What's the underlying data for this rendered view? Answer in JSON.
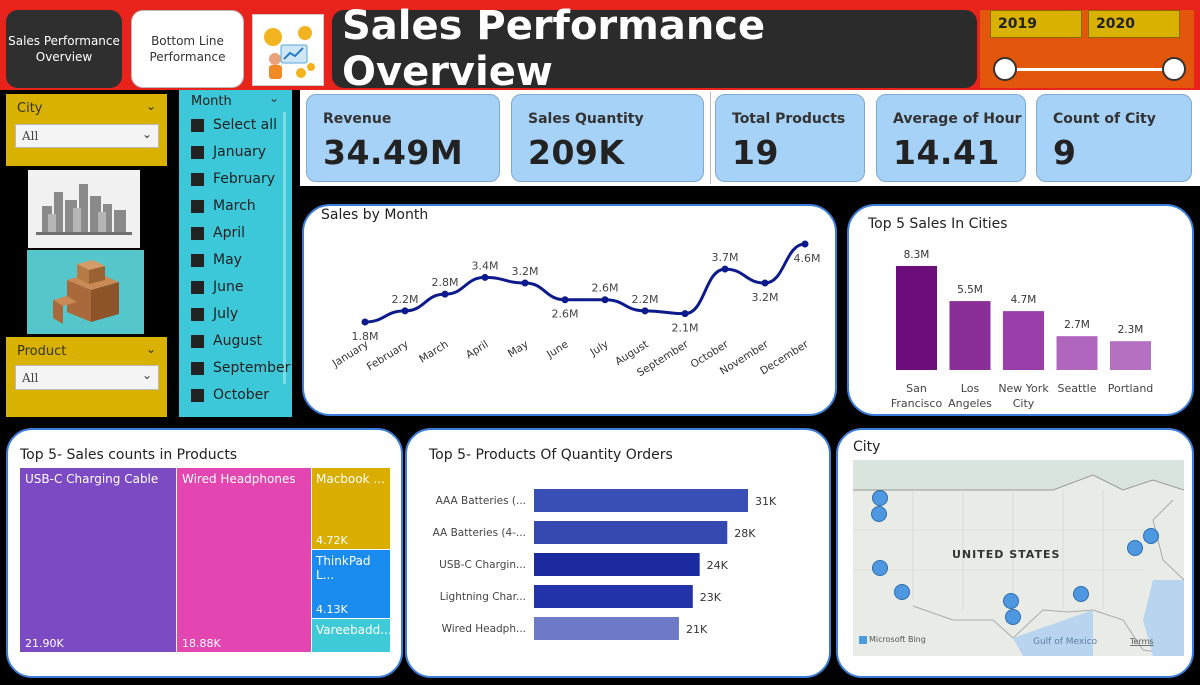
{
  "nav": {
    "sales_performance": "Sales Performance Overview",
    "bottom_line": "Bottom Line Performance"
  },
  "header": {
    "title": "Sales Performance Overview"
  },
  "years": {
    "start": "2019",
    "end": "2020"
  },
  "filters": {
    "city": {
      "label": "City",
      "value": "All"
    },
    "product": {
      "label": "Product",
      "value": "All"
    },
    "month": {
      "label": "Month",
      "items": [
        "Select all",
        "January",
        "February",
        "March",
        "April",
        "May",
        "June",
        "July",
        "August",
        "September",
        "October"
      ]
    }
  },
  "kpis": [
    {
      "label": "Revenue",
      "value": "34.49M"
    },
    {
      "label": "Sales Quantity",
      "value": "209K"
    },
    {
      "label": "Total Products",
      "value": "19"
    },
    {
      "label": "Average of Hour",
      "value": "14.41"
    },
    {
      "label": "Count of City",
      "value": "9"
    }
  ],
  "chart_data": [
    {
      "type": "line",
      "title": "Sales by Month",
      "categories": [
        "January",
        "February",
        "March",
        "April",
        "May",
        "June",
        "July",
        "August",
        "September",
        "October",
        "November",
        "December"
      ],
      "values": [
        1.8,
        2.2,
        2.8,
        3.4,
        3.2,
        2.6,
        2.6,
        2.2,
        2.1,
        3.7,
        3.2,
        4.6
      ],
      "labels": [
        "1.8M",
        "2.2M",
        "2.8M",
        "3.4M",
        "3.2M",
        "2.6M",
        "2.6M",
        "2.2M",
        "2.1M",
        "3.7M",
        "3.2M",
        "4.6M"
      ],
      "color": "#0d1a8c"
    },
    {
      "type": "bar",
      "title": "Top 5 Sales In Cities",
      "categories": [
        "San Francisco",
        "Los Angeles",
        "New York City",
        "Seattle",
        "Portland"
      ],
      "values": [
        8.3,
        5.5,
        4.7,
        2.7,
        2.3
      ],
      "labels": [
        "8.3M",
        "5.5M",
        "4.7M",
        "2.7M",
        "2.3M"
      ],
      "colors": [
        "#6b0e7c",
        "#8a2f98",
        "#9a3faa",
        "#b066bd",
        "#b470c1"
      ]
    },
    {
      "type": "treemap",
      "title": "Top 5- Sales counts in Products",
      "items": [
        {
          "name": "USB-C Charging Cable",
          "value": 21.9,
          "label": "21.90K",
          "color": "#7c4ac2"
        },
        {
          "name": "Wired Headphones",
          "value": 18.88,
          "label": "18.88K",
          "color": "#e345b1"
        },
        {
          "name": "Macbook ...",
          "value": 4.72,
          "label": "4.72K",
          "color": "#d9ae00"
        },
        {
          "name": "ThinkPad L...",
          "value": 4.13,
          "label": "4.13K",
          "color": "#1a8cf0"
        },
        {
          "name": "Vareebadd...",
          "value": 0,
          "label": "",
          "color": "#3fcad8"
        }
      ]
    },
    {
      "type": "bar",
      "orientation": "horizontal",
      "title": "Top 5- Products Of Quantity Orders",
      "categories": [
        "AAA Batteries (...",
        "AA Batteries (4-...",
        "USB-C Chargin...",
        "Lightning Char...",
        "Wired Headph..."
      ],
      "values": [
        31,
        28,
        24,
        23,
        21
      ],
      "labels": [
        "31K",
        "28K",
        "24K",
        "23K",
        "21K"
      ],
      "colors": [
        "#3a4fb5",
        "#3448b0",
        "#1c2aa0",
        "#2232a8",
        "#6d7ac7"
      ]
    }
  ],
  "map": {
    "title": "City",
    "country_label": "UNITED STATES",
    "water_label": "Gulf of Mexico",
    "attribution": "Microsoft Bing",
    "terms": "Terms",
    "bubble_color": "#3d8fe0"
  }
}
